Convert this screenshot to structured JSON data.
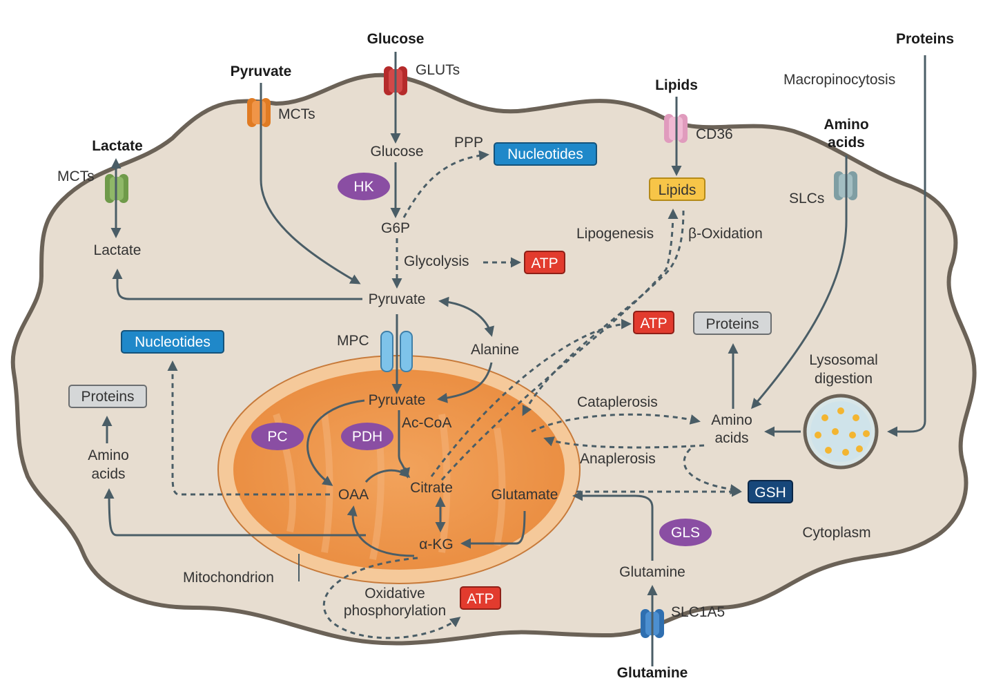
{
  "external": {
    "glucose": "Glucose",
    "pyruvate": "Pyruvate",
    "lactate": "Lactate",
    "lipids": "Lipids",
    "proteins": "Proteins",
    "amino_acids_line1": "Amino",
    "amino_acids_line2": "acids",
    "glutamine": "Glutamine"
  },
  "transporters": {
    "gluts": "GLUTs",
    "mcts_pyruvate": "MCTs",
    "mcts_lactate": "MCTs",
    "cd36": "CD36",
    "slcs": "SLCs",
    "slc1a5": "SLC1A5",
    "mpc": "MPC",
    "macropinocytosis": "Macropinocytosis"
  },
  "metabolites": {
    "glucose": "Glucose",
    "g6p": "G6P",
    "pyruvate": "Pyruvate",
    "lactate": "Lactate",
    "lipids": "Lipids",
    "alanine": "Alanine",
    "mito_pyruvate": "Pyruvate",
    "ac_coa": "Ac-CoA",
    "oaa": "OAA",
    "citrate": "Citrate",
    "akg": "α-KG",
    "glutamate": "Glutamate",
    "glutamine": "Glutamine",
    "amino_acids_right_1": "Amino",
    "amino_acids_right_2": "acids",
    "amino_acids_left_1": "Amino",
    "amino_acids_left_2": "acids"
  },
  "processes": {
    "ppp": "PPP",
    "glycolysis": "Glycolysis",
    "lipogenesis": "Lipogenesis",
    "beta_oxidation": "β-Oxidation",
    "cataplerosis": "Cataplerosis",
    "anaplerosis": "Anaplerosis",
    "oxphos_line1": "Oxidative",
    "oxphos_line2": "phosphorylation",
    "lysosomal_line1": "Lysosomal",
    "lysosomal_line2": "digestion"
  },
  "compartments": {
    "cytoplasm": "Cytoplasm",
    "mitochondrion": "Mitochondrion"
  },
  "enzymes": {
    "hk": "HK",
    "pc": "PC",
    "pdh": "PDH",
    "gls": "GLS"
  },
  "products": {
    "nucleotides_top": "Nucleotides",
    "nucleotides_left": "Nucleotides",
    "atp_glycolysis": "ATP",
    "atp_lipid": "ATP",
    "atp_oxphos": "ATP",
    "proteins_left": "Proteins",
    "proteins_right": "Proteins",
    "gsh": "GSH"
  },
  "colors": {
    "cell_fill": "#e7ddd0",
    "cell_border": "#6b6257",
    "mito_outer": "#f5c99a",
    "mito_inner": "#ef9a4f",
    "arrow": "#4a5d66",
    "atp_box": "#e23b2e",
    "nucleotide_box": "#1f88c9",
    "protein_box": "#d5d7d8",
    "gsh_box": "#17477a",
    "lipid_box": "#f7c548",
    "enzyme": "#8a4ea3"
  }
}
